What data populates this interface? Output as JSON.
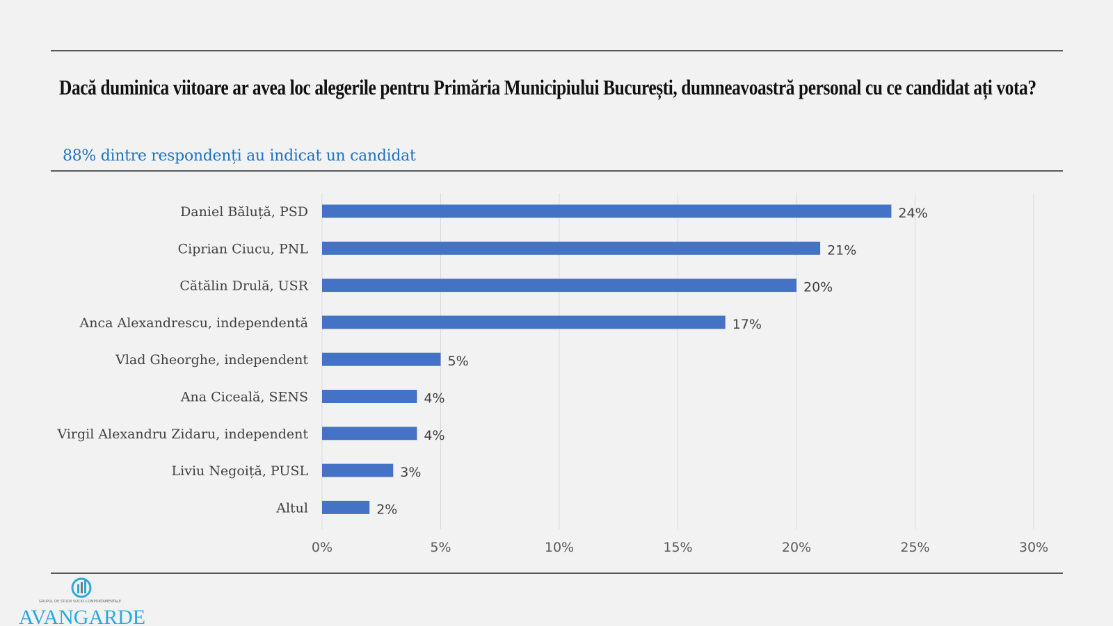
{
  "header": {
    "title": "Dacă duminica viitoare ar avea loc alegerile pentru Primăria Municipiului București, dumneavoastră personal cu ce candidat ați vota?",
    "subtitle": "88% dintre respondenți au indicat un candidat"
  },
  "chart_data": {
    "type": "bar",
    "orientation": "horizontal",
    "title": "Dacă duminica viitoare ar avea loc alegerile pentru Primăria Municipiului București, dumneavoastră personal cu ce candidat ați vota?",
    "categories": [
      "Daniel Băluță, PSD",
      "Ciprian Ciucu, PNL",
      "Cătălin Drulă, USR",
      "Anca Alexandrescu, independentă",
      "Vlad Gheorghe, independent",
      "Ana Ciceală, SENS",
      "Virgil Alexandru Zidaru, independent",
      "Liviu Negoiță, PUSL",
      "Altul"
    ],
    "values": [
      24,
      21,
      20,
      17,
      5,
      4,
      4,
      3,
      2
    ],
    "value_labels": [
      "24%",
      "21%",
      "20%",
      "17%",
      "5%",
      "4%",
      "4%",
      "3%",
      "2%"
    ],
    "xlim": [
      0,
      30
    ],
    "xticks": [
      0,
      5,
      10,
      15,
      20,
      25,
      30
    ],
    "xtick_labels": [
      "0%",
      "5%",
      "10%",
      "15%",
      "20%",
      "25%",
      "30%"
    ],
    "grid": true,
    "xlabel": "",
    "ylabel": "",
    "bar_color": "#4472c4"
  },
  "logo": {
    "text": "AVANGARDE",
    "tagline": "GRUPUL DE STUDII SOCIO-COMPORTAMENTALE",
    "color": "#29a8e0"
  }
}
